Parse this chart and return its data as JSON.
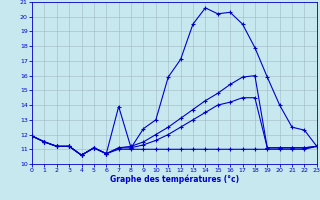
{
  "xlabel": "Graphe des températures (°c)",
  "background_color": "#c8e8f0",
  "grid_color": "#a0b8c0",
  "line_color": "#0000cc",
  "xlim": [
    0,
    23
  ],
  "ylim": [
    10,
    21
  ],
  "xticks": [
    0,
    1,
    2,
    3,
    4,
    5,
    6,
    7,
    8,
    9,
    10,
    11,
    12,
    13,
    14,
    15,
    16,
    17,
    18,
    19,
    20,
    21,
    22,
    23
  ],
  "yticks": [
    10,
    11,
    12,
    13,
    14,
    15,
    16,
    17,
    18,
    19,
    20,
    21
  ],
  "line1_x": [
    0,
    1,
    2,
    3,
    4,
    5,
    6,
    7,
    8,
    9,
    10,
    11,
    12,
    13,
    14,
    15,
    16,
    17,
    18,
    19,
    20,
    21,
    22,
    23
  ],
  "line1_y": [
    11.9,
    11.5,
    11.2,
    11.2,
    10.6,
    11.1,
    10.7,
    13.9,
    11.1,
    12.4,
    13.0,
    15.9,
    17.1,
    19.5,
    20.6,
    20.2,
    20.3,
    19.5,
    17.9,
    15.9,
    14.0,
    12.5,
    12.3,
    11.2
  ],
  "line2_x": [
    0,
    1,
    2,
    3,
    4,
    5,
    6,
    7,
    8,
    9,
    10,
    11,
    12,
    13,
    14,
    15,
    16,
    17,
    18,
    19,
    20,
    21,
    22,
    23
  ],
  "line2_y": [
    11.9,
    11.5,
    11.2,
    11.2,
    10.6,
    11.1,
    10.7,
    11.1,
    11.2,
    11.5,
    12.0,
    12.5,
    13.1,
    13.7,
    14.3,
    14.8,
    15.4,
    15.9,
    16.0,
    11.1,
    11.1,
    11.1,
    11.1,
    11.2
  ],
  "line3_x": [
    0,
    1,
    2,
    3,
    4,
    5,
    6,
    7,
    8,
    9,
    10,
    11,
    12,
    13,
    14,
    15,
    16,
    17,
    18,
    19,
    20,
    21,
    22,
    23
  ],
  "line3_y": [
    11.9,
    11.5,
    11.2,
    11.2,
    10.6,
    11.1,
    10.7,
    11.1,
    11.1,
    11.3,
    11.6,
    12.0,
    12.5,
    13.0,
    13.5,
    14.0,
    14.2,
    14.5,
    14.5,
    11.1,
    11.1,
    11.1,
    11.1,
    11.2
  ],
  "line4_x": [
    0,
    1,
    2,
    3,
    4,
    5,
    6,
    7,
    8,
    9,
    10,
    11,
    12,
    13,
    14,
    15,
    16,
    17,
    18,
    19,
    20,
    21,
    22,
    23
  ],
  "line4_y": [
    11.9,
    11.5,
    11.2,
    11.2,
    10.6,
    11.1,
    10.7,
    11.0,
    11.0,
    11.0,
    11.0,
    11.0,
    11.0,
    11.0,
    11.0,
    11.0,
    11.0,
    11.0,
    11.0,
    11.0,
    11.0,
    11.0,
    11.0,
    11.2
  ]
}
